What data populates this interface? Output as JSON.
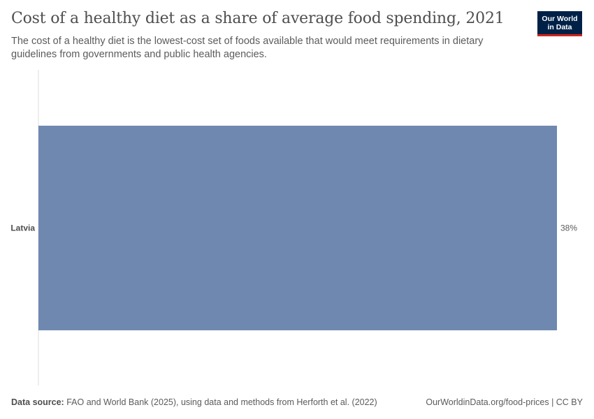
{
  "header": {
    "title": "Cost of a healthy diet as a share of average food spending, 2021",
    "subtitle": "The cost of a healthy diet is the lowest-cost set of foods available that would meet requirements in dietary guidelines from governments and public health agencies."
  },
  "logo": {
    "line1": "Our World",
    "line2": "in Data",
    "bg_color": "#002147",
    "accent_color": "#ce261e"
  },
  "footer": {
    "source_label": "Data source:",
    "source_text": "FAO and World Bank (2025), using data and methods from Herforth et al. (2022)",
    "url_license": "OurWorldinData.org/food-prices | CC BY"
  },
  "chart_data": {
    "type": "bar",
    "orientation": "horizontal",
    "categories": [
      "Latvia"
    ],
    "values": [
      38
    ],
    "value_labels": [
      "38%"
    ],
    "unit": "%",
    "xlim": [
      0,
      38
    ],
    "grid": false,
    "bar_color": "#6f88b0",
    "axis_color": "#dddddd"
  }
}
